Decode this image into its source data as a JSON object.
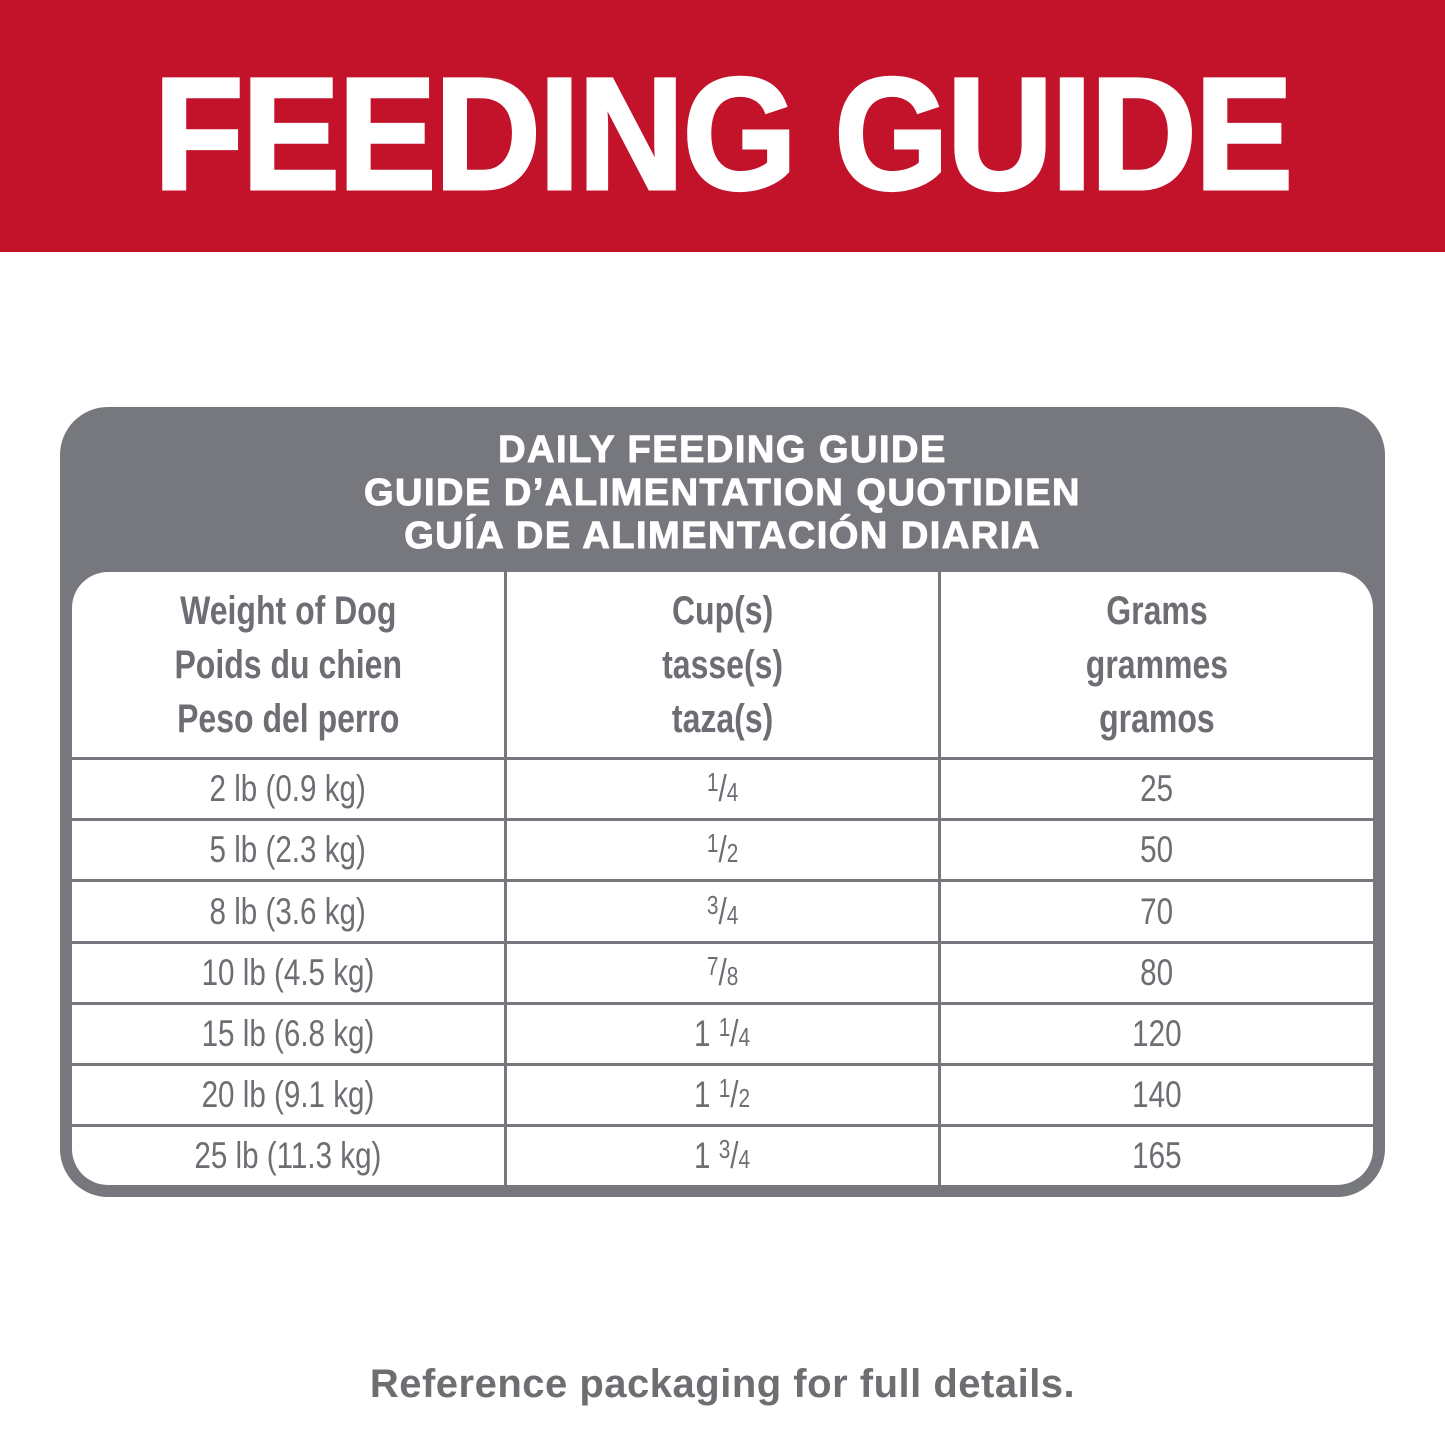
{
  "banner": {
    "title": "FEEDING GUIDE",
    "color": "#C3132B"
  },
  "card": {
    "title_lines": [
      "DAILY FEEDING GUIDE",
      "GUIDE D’ALIMENTATION QUOTIDIEN",
      "GUÍA DE ALIMENTACIÓN DIARIA"
    ],
    "color": "#76787E"
  },
  "table": {
    "headers": [
      [
        "Weight of Dog",
        "Poids du chien",
        "Peso del perro"
      ],
      [
        "Cup(s)",
        "tasse(s)",
        "taza(s)"
      ],
      [
        "Grams",
        "grammes",
        "gramos"
      ]
    ],
    "rows": [
      {
        "weight": "2 lb (0.9 kg)",
        "cups": {
          "whole": "",
          "num": "1",
          "den": "4"
        },
        "grams": "25"
      },
      {
        "weight": "5 lb (2.3 kg)",
        "cups": {
          "whole": "",
          "num": "1",
          "den": "2"
        },
        "grams": "50"
      },
      {
        "weight": "8 lb (3.6 kg)",
        "cups": {
          "whole": "",
          "num": "3",
          "den": "4"
        },
        "grams": "70"
      },
      {
        "weight": "10 lb (4.5 kg)",
        "cups": {
          "whole": "",
          "num": "7",
          "den": "8"
        },
        "grams": "80"
      },
      {
        "weight": "15 lb (6.8 kg)",
        "cups": {
          "whole": "1 ",
          "num": "1",
          "den": "4"
        },
        "grams": "120"
      },
      {
        "weight": "20 lb (9.1 kg)",
        "cups": {
          "whole": "1 ",
          "num": "1",
          "den": "2"
        },
        "grams": "140"
      },
      {
        "weight": "25 lb (11.3 kg)",
        "cups": {
          "whole": "1 ",
          "num": "3",
          "den": "4"
        },
        "grams": "165"
      }
    ]
  },
  "footer": {
    "note": "Reference packaging for full details."
  }
}
